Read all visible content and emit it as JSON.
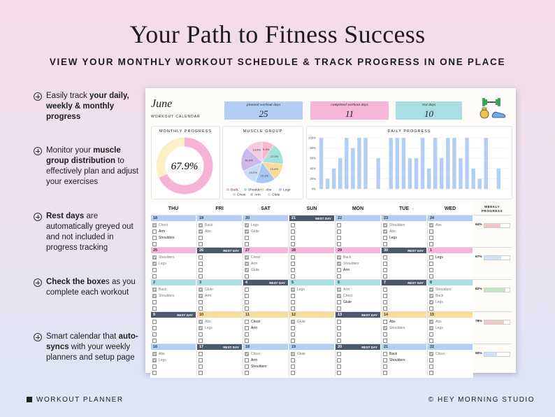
{
  "header": {
    "title": "Your Path to Fitness Success",
    "subtitle": "VIEW YOUR MONTHLY WORKOUT SCHEDULE & TRACK PROGRESS IN ONE PLACE"
  },
  "features": [
    [
      {
        "text": "Easily track ",
        "bold": false
      },
      {
        "text": "your daily, weekly & monthly progress",
        "bold": true
      }
    ],
    [
      {
        "text": "Monitor your ",
        "bold": false
      },
      {
        "text": "muscle group distribution",
        "bold": true
      },
      {
        "text": " to effectively plan and adjust your exercises",
        "bold": false
      }
    ],
    [
      {
        "text": "Rest days",
        "bold": true
      },
      {
        "text": " are automatically greyed out and not included in progress tracking",
        "bold": false
      }
    ],
    [
      {
        "text": "Check the boxe",
        "bold": true
      },
      {
        "text": "s as you complete each workout",
        "bold": false
      }
    ],
    [
      {
        "text": "Smart calendar that ",
        "bold": false
      },
      {
        "text": "auto-syncs",
        "bold": true
      },
      {
        "text": " with your weekly planners and setup page",
        "bold": false
      }
    ]
  ],
  "sheet": {
    "month": "June",
    "label": "WORKOUT CALENDAR",
    "stats": [
      {
        "label": "planned workout days",
        "value": 25,
        "color": "#b3cef5"
      },
      {
        "label": "completed workout days",
        "value": 11,
        "color": "#f6b6da"
      },
      {
        "label": "rest days",
        "value": 10,
        "color": "#a9dfe2"
      }
    ],
    "monthly_progress": {
      "title": "MONTHLY PROGRESS",
      "value": 67.9,
      "label": "67.9%",
      "color": "#f6b3d6",
      "track": "#fbf0c6"
    },
    "muscle_group": {
      "title": "MUSCLE GROUP",
      "slices": [
        {
          "name": "Back",
          "value": 9.4,
          "label": "9.4%",
          "color": "#f7b9cf"
        },
        {
          "name": "Shoulders",
          "value": 17.0,
          "label": "17.0%",
          "color": "#a8e0dc"
        },
        {
          "name": "Abs",
          "value": 13.4,
          "label": "13.4%",
          "color": "#f9dc9c"
        },
        {
          "name": "Legs",
          "value": 15.1,
          "label": "15.1%",
          "color": "#a9c6f2"
        },
        {
          "name": "Chest",
          "value": 13.2,
          "label": "13.2%",
          "color": "#c8dcf6"
        },
        {
          "name": "Arm",
          "value": 18.9,
          "label": "18.9%",
          "color": "#cdb8ea"
        },
        {
          "name": "Glute",
          "value": 13.0,
          "label": "13.0%",
          "color": "#f3cbe2"
        }
      ]
    },
    "daily_progress": {
      "title": "DAILY PROGRESS",
      "ylim": [
        0,
        100
      ],
      "yticks": [
        {
          "value": 0,
          "label": "0%"
        },
        {
          "value": 20,
          "label": "20%"
        },
        {
          "value": 40,
          "label": "40%"
        },
        {
          "value": 60,
          "label": "60%"
        },
        {
          "value": 80,
          "label": "80%"
        },
        {
          "value": 100,
          "label": "100%"
        }
      ],
      "values": [
        100,
        20,
        40,
        60,
        100,
        80,
        100,
        100,
        0,
        60,
        0,
        100,
        100,
        100,
        60,
        60,
        100,
        40,
        100,
        60,
        100,
        100,
        60,
        100,
        40,
        20,
        100,
        0,
        40,
        0
      ],
      "color": "#b3cef5"
    },
    "calendar": {
      "weekdays": [
        "THU",
        "FRI",
        "SAT",
        "SUN",
        "MON",
        "TUE",
        "WED"
      ],
      "progress_title": "WEEKLY PROGRESS",
      "rest_color": "#4d586b",
      "weeks": [
        {
          "color": "#b3cef5",
          "progress": {
            "value": 64,
            "label": "64%",
            "color": "#f2c6c6"
          },
          "days": [
            {
              "day": 18,
              "items": [
                {
                  "name": "Chest",
                  "done": true
                },
                {
                  "name": "Arm",
                  "done": false
                },
                {
                  "name": "Shoulders",
                  "done": false
                }
              ]
            },
            {
              "day": 19,
              "items": [
                {
                  "name": "Back",
                  "done": true
                },
                {
                  "name": "Abs",
                  "done": true
                }
              ]
            },
            {
              "day": 20,
              "items": [
                {
                  "name": "Legs",
                  "done": true
                },
                {
                  "name": "Glute",
                  "done": true
                }
              ]
            },
            {
              "day": 21,
              "rest": "REST DAY",
              "items": []
            },
            {
              "day": 22,
              "items": []
            },
            {
              "day": 23,
              "items": [
                {
                  "name": "Shoulders",
                  "done": true
                },
                {
                  "name": "Abs",
                  "done": true
                },
                {
                  "name": "Legs",
                  "done": false
                }
              ]
            },
            {
              "day": 24,
              "items": [
                {
                  "name": "Abs",
                  "done": true
                }
              ]
            }
          ]
        },
        {
          "color": "#f6b6da",
          "progress": {
            "value": 67,
            "label": "67%",
            "color": "#cfe0f7"
          },
          "days": [
            {
              "day": 25,
              "items": [
                {
                  "name": "Shoulders",
                  "done": true
                },
                {
                  "name": "Legs",
                  "done": true
                }
              ]
            },
            {
              "day": 26,
              "rest": "REST DAY",
              "items": []
            },
            {
              "day": 27,
              "items": [
                {
                  "name": "Chest",
                  "done": true
                },
                {
                  "name": "Arm",
                  "done": true
                },
                {
                  "name": "Glute",
                  "done": true
                }
              ]
            },
            {
              "day": 28,
              "items": []
            },
            {
              "day": 29,
              "items": [
                {
                  "name": "Back",
                  "done": true
                },
                {
                  "name": "Shoulders",
                  "done": true
                },
                {
                  "name": "Arm",
                  "done": false
                }
              ]
            },
            {
              "day": 30,
              "rest": "REST DAY",
              "items": []
            },
            {
              "day": 1,
              "items": [
                {
                  "name": "Legs",
                  "done": false
                }
              ]
            }
          ]
        },
        {
          "color": "#a9dfe2",
          "progress": {
            "value": 82,
            "label": "82%",
            "color": "#c4e4c6"
          },
          "days": [
            {
              "day": 2,
              "items": [
                {
                  "name": "Back",
                  "done": true
                },
                {
                  "name": "Shoulders",
                  "done": true
                }
              ]
            },
            {
              "day": 3,
              "items": [
                {
                  "name": "Glute",
                  "done": true
                },
                {
                  "name": "Arm",
                  "done": true
                }
              ]
            },
            {
              "day": 4,
              "rest": "REST DAY",
              "items": []
            },
            {
              "day": 5,
              "items": [
                {
                  "name": "Legs",
                  "done": true
                }
              ]
            },
            {
              "day": 6,
              "items": [
                {
                  "name": "Arm",
                  "done": true
                },
                {
                  "name": "Chest",
                  "done": true
                },
                {
                  "name": "Glute",
                  "done": false
                }
              ]
            },
            {
              "day": 7,
              "rest": "REST DAY",
              "items": []
            },
            {
              "day": 8,
              "items": [
                {
                  "name": "Shoulders",
                  "done": true
                },
                {
                  "name": "Back",
                  "done": true
                },
                {
                  "name": "Legs",
                  "done": true
                }
              ]
            }
          ]
        },
        {
          "color": "#f9dc9c",
          "progress": {
            "value": 78,
            "label": "78%",
            "color": "#f0c6c6"
          },
          "days": [
            {
              "day": 9,
              "rest": "REST DAY",
              "items": []
            },
            {
              "day": 10,
              "items": [
                {
                  "name": "Abs",
                  "done": true
                },
                {
                  "name": "Legs",
                  "done": true
                }
              ]
            },
            {
              "day": 11,
              "items": [
                {
                  "name": "Chest",
                  "done": false
                },
                {
                  "name": "Arm",
                  "done": false
                }
              ]
            },
            {
              "day": 12,
              "items": [
                {
                  "name": "Glute",
                  "done": true
                }
              ]
            },
            {
              "day": 13,
              "rest": "REST DAY",
              "items": []
            },
            {
              "day": 14,
              "items": [
                {
                  "name": "Abs",
                  "done": false
                },
                {
                  "name": "Shoulders",
                  "done": true
                }
              ]
            },
            {
              "day": 15,
              "items": [
                {
                  "name": "Abs",
                  "done": true
                },
                {
                  "name": "Legs",
                  "done": true
                }
              ]
            }
          ]
        },
        {
          "color": "#b3cef5",
          "progress": {
            "value": 50,
            "label": "50%",
            "color": "#cfe0f7"
          },
          "days": [
            {
              "day": 16,
              "items": [
                {
                  "name": "Abs",
                  "done": true
                },
                {
                  "name": "Legs",
                  "done": true
                }
              ]
            },
            {
              "day": 17,
              "rest": "REST DAY",
              "items": []
            },
            {
              "day": 18,
              "items": [
                {
                  "name": "Chest",
                  "done": true
                },
                {
                  "name": "Arm",
                  "done": false
                },
                {
                  "name": "Shoulders",
                  "done": false
                }
              ]
            },
            {
              "day": 19,
              "items": [
                {
                  "name": "Glute",
                  "done": true
                }
              ]
            },
            {
              "day": 20,
              "rest": "REST DAY",
              "items": []
            },
            {
              "day": 21,
              "items": [
                {
                  "name": "Back",
                  "done": false
                },
                {
                  "name": "Shoulders",
                  "done": false
                }
              ]
            },
            {
              "day": 22,
              "items": [
                {
                  "name": "Chest",
                  "done": true
                }
              ]
            }
          ]
        }
      ]
    }
  },
  "footer": {
    "left": "WORKOUT PLANNER",
    "right": "© HEY MORNING STUDIO"
  }
}
